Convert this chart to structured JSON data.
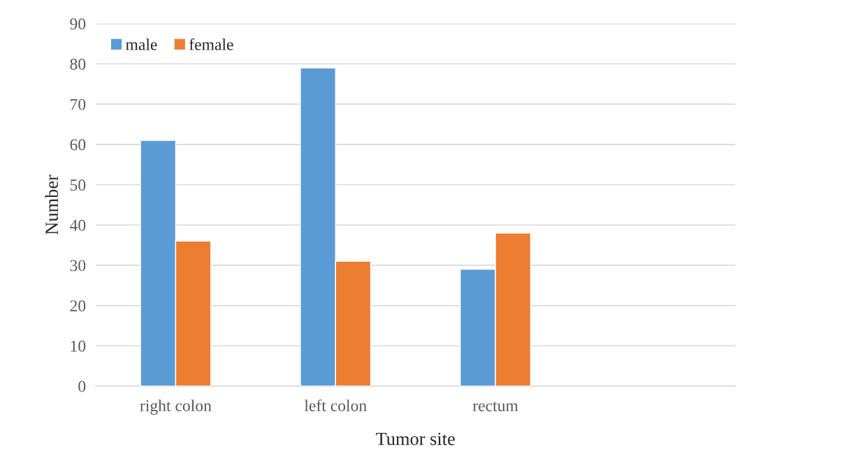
{
  "chart_data": {
    "type": "bar",
    "xlabel": "Tumor site",
    "ylabel": "Number",
    "categories": [
      "right colon",
      "left colon",
      "rectum",
      null
    ],
    "series": [
      {
        "name": "male",
        "color": "#5b9bd5",
        "values": [
          61,
          79,
          29,
          null
        ]
      },
      {
        "name": "female",
        "color": "#ed7d31",
        "values": [
          36,
          31,
          38,
          null
        ]
      }
    ],
    "ylim": [
      0,
      90
    ],
    "yticks": [
      0,
      10,
      20,
      30,
      40,
      50,
      60,
      70,
      80,
      90
    ],
    "grid": "y",
    "legend": "top left"
  }
}
